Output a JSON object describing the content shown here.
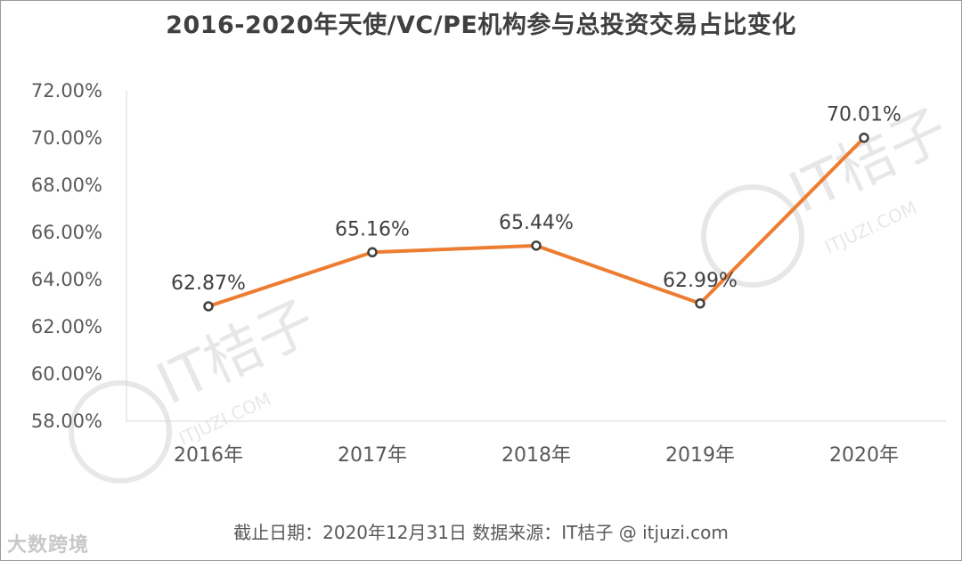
{
  "chart_data": {
    "type": "line",
    "title": "2016-2020年天使/VC/PE机构参与总投资交易占比变化",
    "categories": [
      "2016年",
      "2017年",
      "2018年",
      "2019年",
      "2020年"
    ],
    "series": [
      {
        "values": [
          62.87,
          65.16,
          65.44,
          62.99,
          70.01
        ],
        "labels": [
          "62.87%",
          "65.16%",
          "65.44%",
          "62.99%",
          "70.01%"
        ],
        "color": "#ED7D31"
      }
    ],
    "ylim": [
      58,
      72
    ],
    "yticks": [
      "58.00%",
      "60.00%",
      "62.00%",
      "64.00%",
      "66.00%",
      "68.00%",
      "70.00%",
      "72.00%"
    ],
    "grid": false,
    "source": "截止日期：2020年12月31日    数据来源：IT桔子 @ itjuzi.com"
  },
  "watermarks": {
    "brand": "IT桔子",
    "url": "ITJUZI.COM",
    "corner": "大数跨境"
  }
}
